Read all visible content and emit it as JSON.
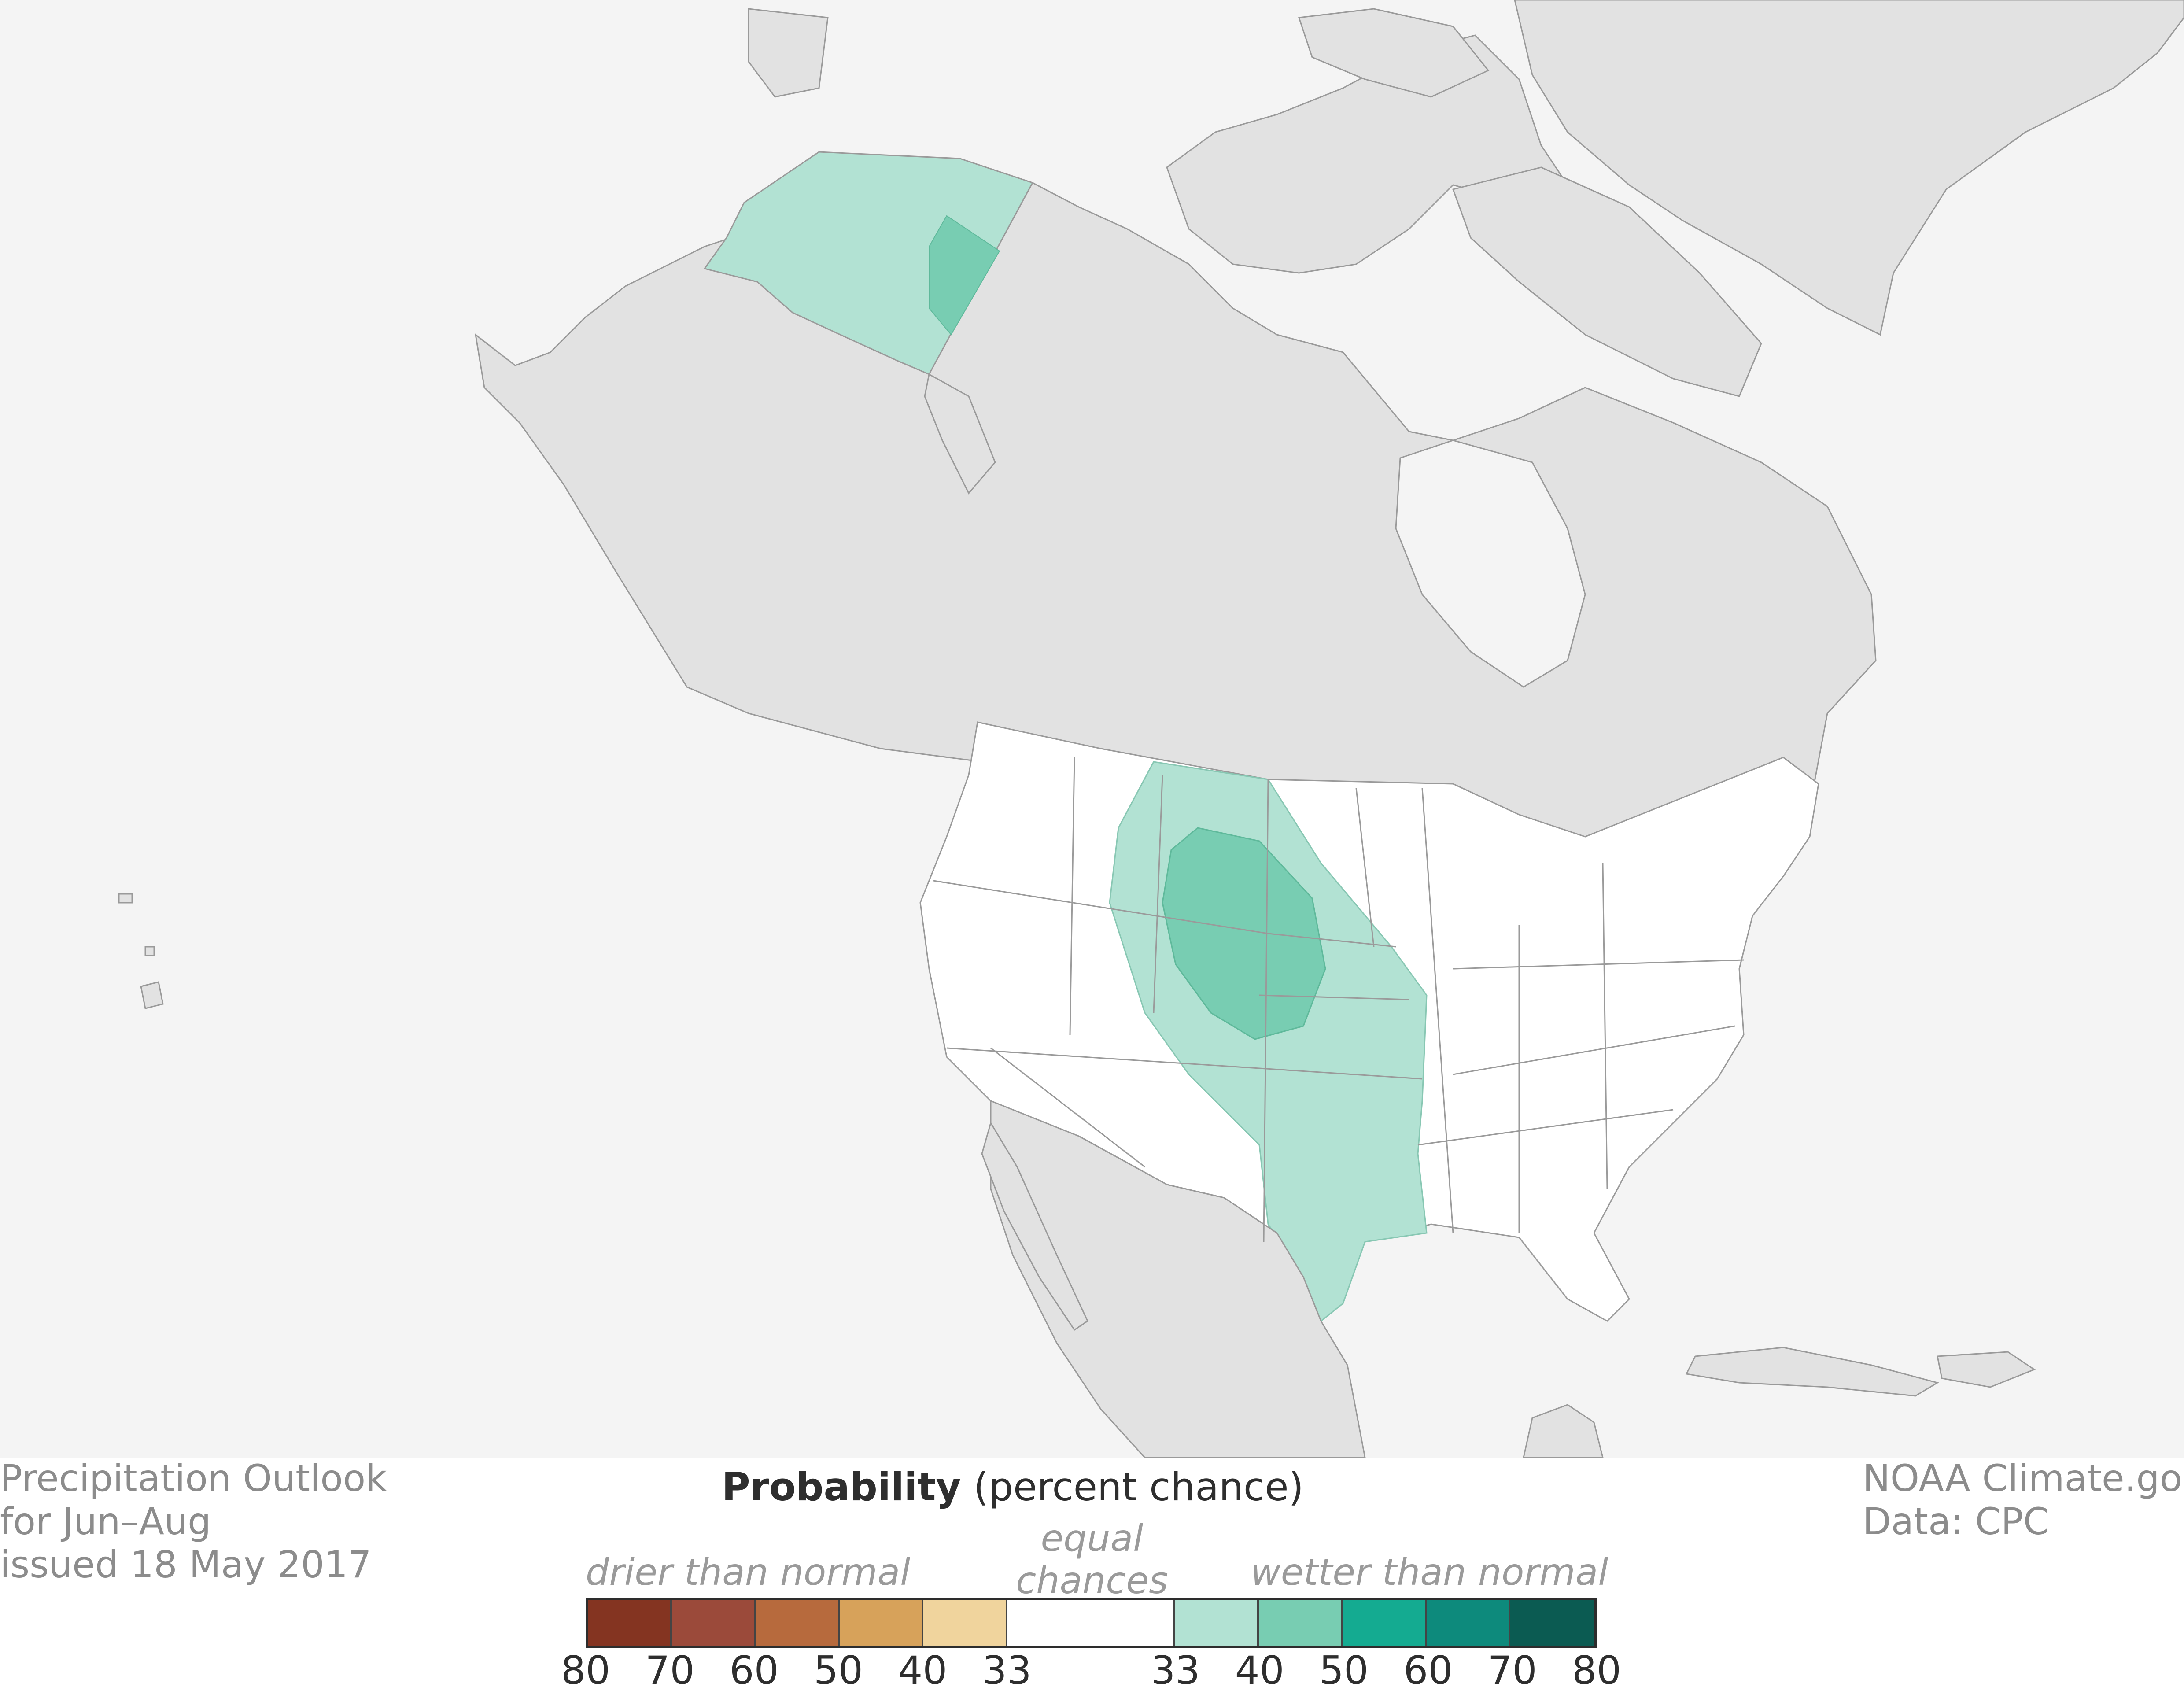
{
  "map": {
    "colors": {
      "ocean": "#f4f4f4",
      "land_other": "#e2e2e2",
      "land_us": "#ffffff",
      "border": "#9a9a9a",
      "wetter_33_40": "#b2e2d3",
      "wetter_40_50": "#78cdb2"
    }
  },
  "info": {
    "line1": "Precipitation Outlook",
    "line2": "for Jun–Aug",
    "line3": "issued 18 May 2017",
    "credit1": "NOAA Climate.gov",
    "credit2": "Data: CPC"
  },
  "legend": {
    "title_bold": "Probability",
    "title_rest": " (percent chance)",
    "drier": "drier than normal",
    "equal_line1": "equal",
    "equal_line2": "chances",
    "wetter": "wetter than normal",
    "swatches": [
      {
        "color": "#843421",
        "label": "80-70 drier"
      },
      {
        "color": "#9b4a3a",
        "label": "70-60 drier"
      },
      {
        "color": "#b76a3d",
        "label": "60-50 drier"
      },
      {
        "color": "#d7a25a",
        "label": "50-40 drier"
      },
      {
        "color": "#f0d49d",
        "label": "40-33 drier"
      },
      {
        "color": "#ffffff",
        "label": "equal chances",
        "span": 2
      },
      {
        "color": "#b2e2d3",
        "label": "33-40 wetter"
      },
      {
        "color": "#78cdb2",
        "label": "40-50 wetter"
      },
      {
        "color": "#14ab91",
        "label": "50-60 wetter"
      },
      {
        "color": "#0d8a7c",
        "label": "60-70 wetter"
      },
      {
        "color": "#0b5b52",
        "label": "70-80 wetter"
      }
    ],
    "ticks": [
      "80",
      "70",
      "60",
      "50",
      "40",
      "33",
      "33",
      "40",
      "50",
      "60",
      "70",
      "80"
    ]
  }
}
